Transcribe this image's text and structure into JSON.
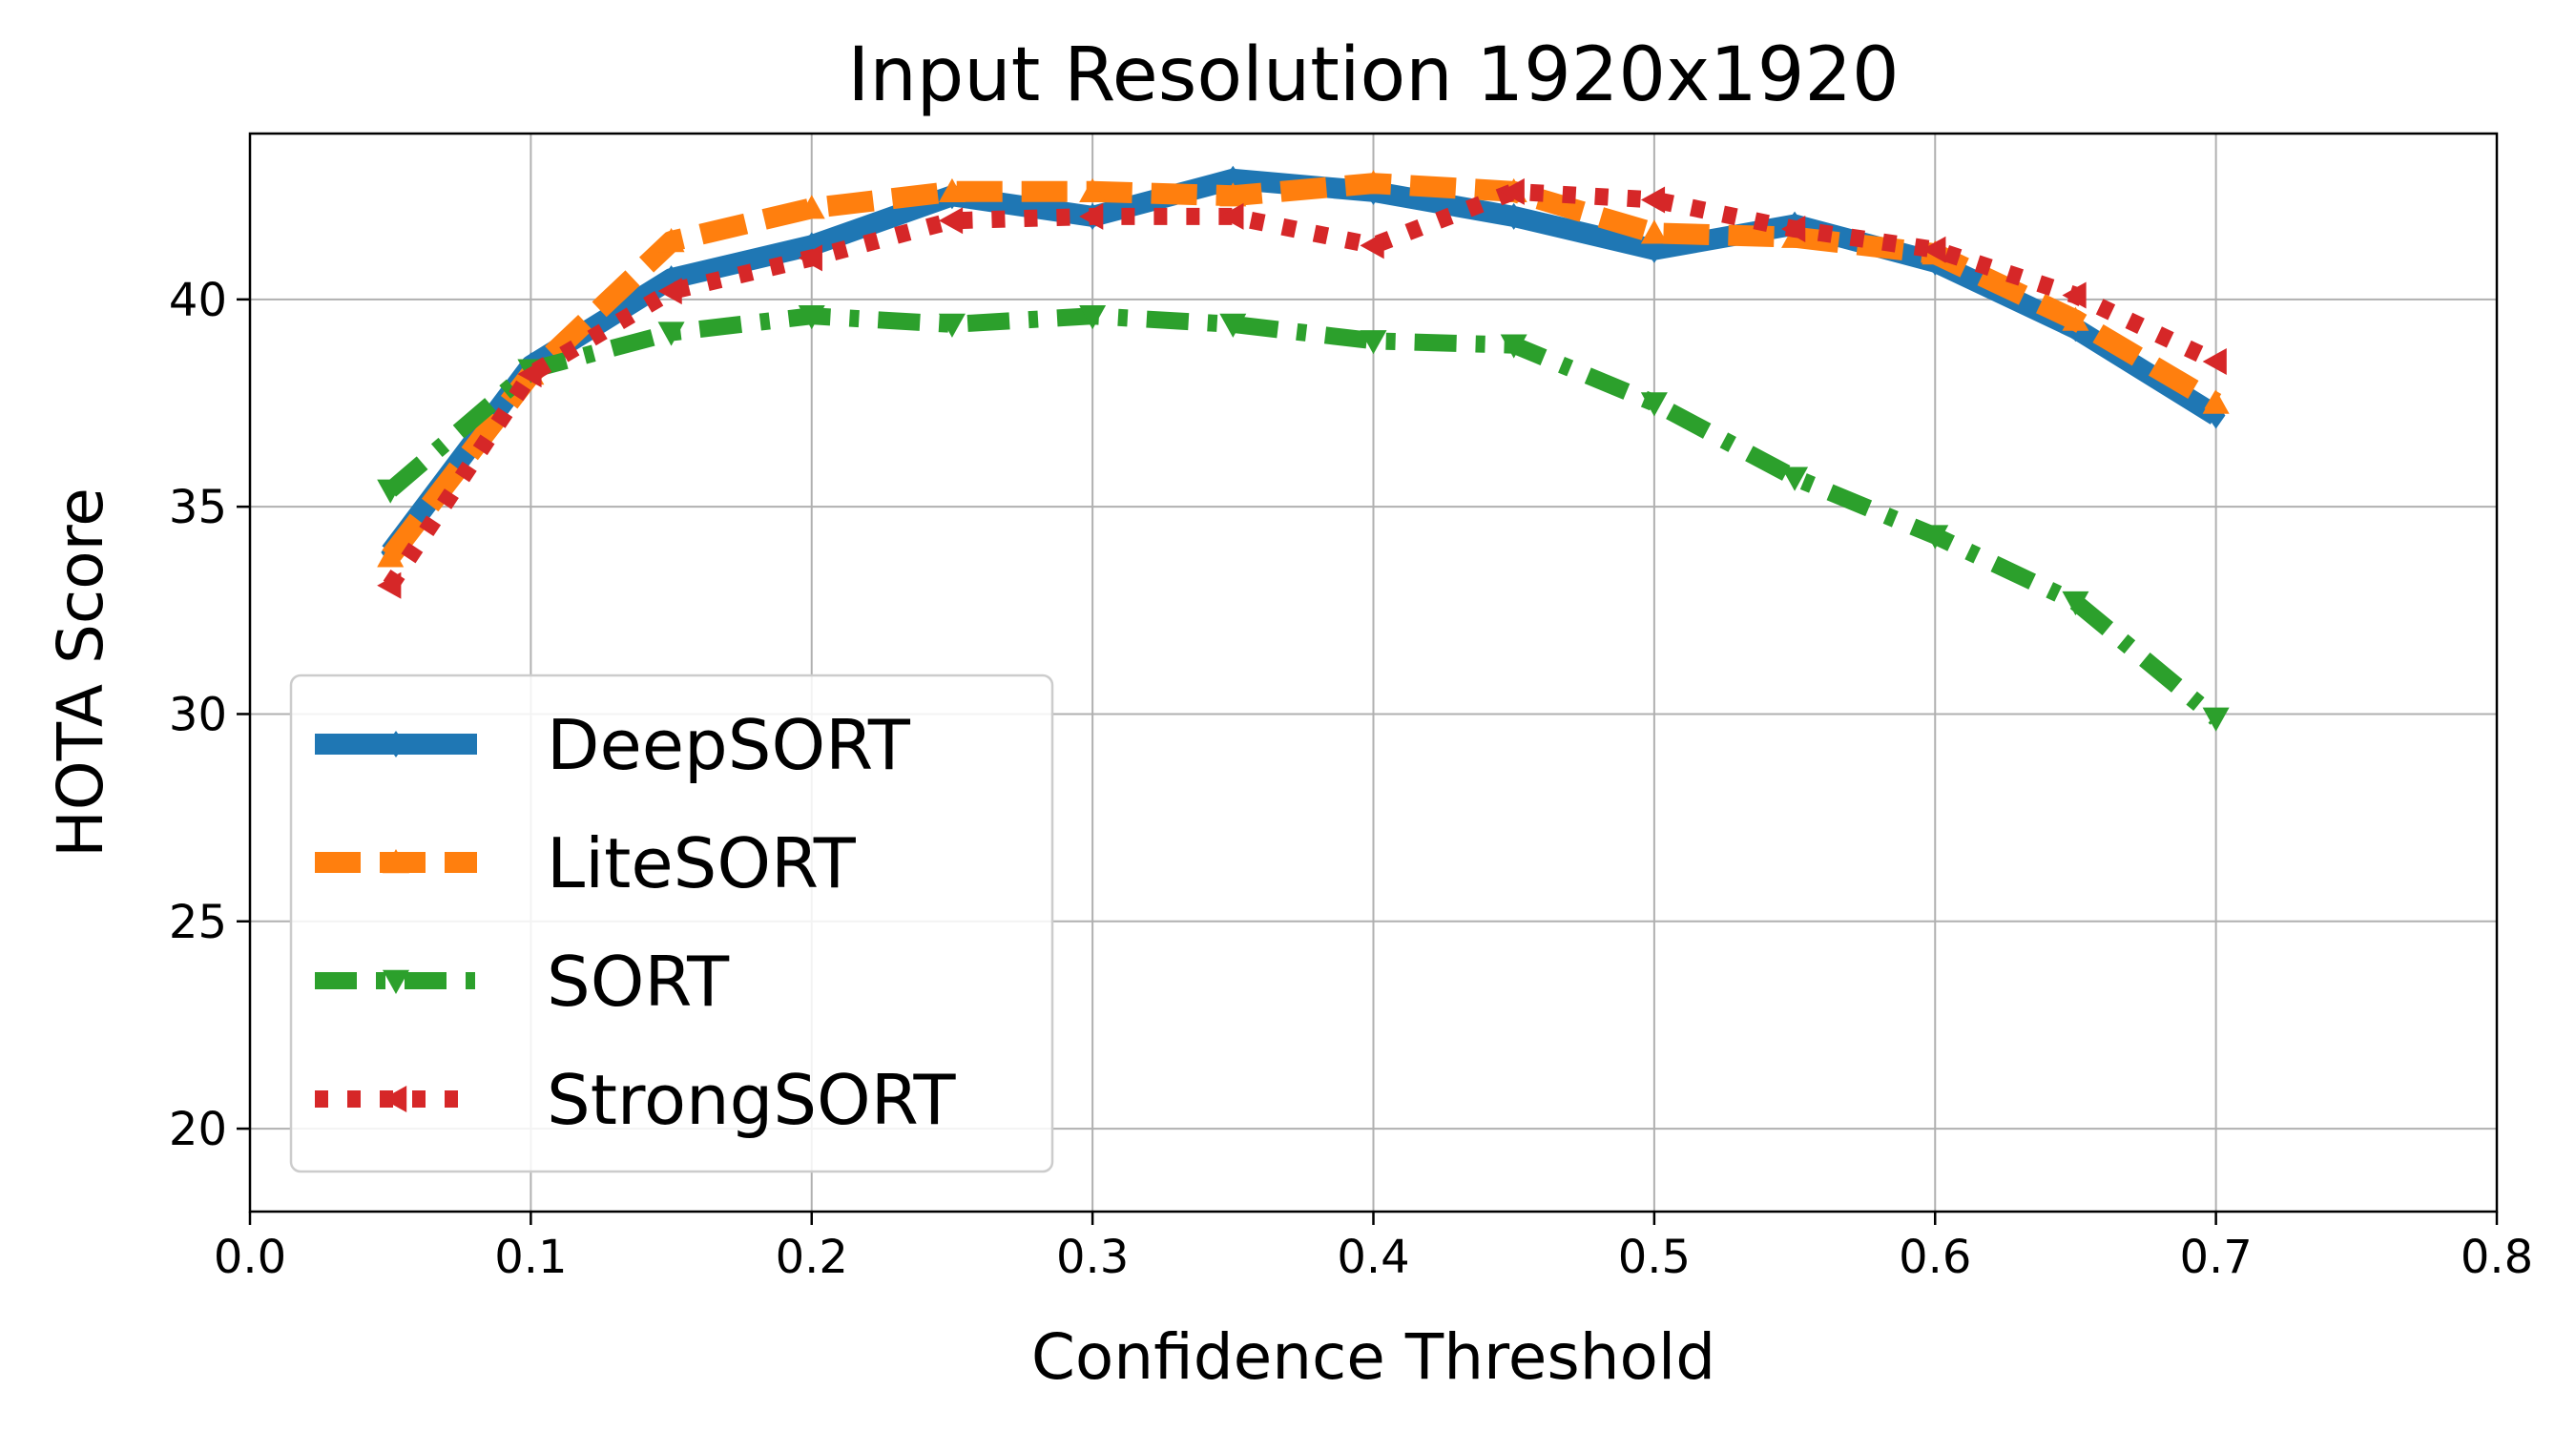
{
  "chart_data": {
    "type": "line",
    "title": "Input Resolution 1920x1920",
    "xlabel": "Confidence Threshold",
    "ylabel": "HOTA Score",
    "xlim": [
      0.0,
      0.8
    ],
    "ylim": [
      18,
      44
    ],
    "xticks": [
      "0.0",
      "0.1",
      "0.2",
      "0.3",
      "0.4",
      "0.5",
      "0.6",
      "0.7",
      "0.8"
    ],
    "yticks": [
      "20",
      "25",
      "30",
      "35",
      "40"
    ],
    "grid": true,
    "legend_position": "lower-left",
    "series": [
      {
        "name": "DeepSORT",
        "color": "#1f77b4",
        "line_style": "solid",
        "marker": "diamond",
        "x": [
          0.05,
          0.1,
          0.15,
          0.2,
          0.25,
          0.3,
          0.35,
          0.4,
          0.45,
          0.5,
          0.55,
          0.6,
          0.65,
          0.7
        ],
        "y": [
          33.9,
          38.4,
          40.5,
          41.3,
          42.5,
          42.0,
          42.9,
          42.6,
          42.0,
          41.2,
          41.8,
          40.9,
          39.3,
          37.2
        ]
      },
      {
        "name": "LiteSORT",
        "color": "#ff7f0e",
        "line_style": "dashed",
        "marker": "triangle-up",
        "x": [
          0.05,
          0.1,
          0.15,
          0.2,
          0.25,
          0.3,
          0.35,
          0.4,
          0.45,
          0.5,
          0.55,
          0.6,
          0.65,
          0.7
        ],
        "y": [
          33.8,
          38.2,
          41.4,
          42.2,
          42.6,
          42.6,
          42.5,
          42.8,
          42.6,
          41.6,
          41.5,
          41.1,
          39.5,
          37.5
        ]
      },
      {
        "name": "SORT",
        "color": "#2ca02c",
        "line_style": "dashdot",
        "marker": "triangle-down",
        "x": [
          0.05,
          0.1,
          0.15,
          0.2,
          0.25,
          0.3,
          0.35,
          0.4,
          0.45,
          0.5,
          0.55,
          0.6,
          0.65,
          0.7
        ],
        "y": [
          35.4,
          38.3,
          39.2,
          39.6,
          39.4,
          39.6,
          39.4,
          39.0,
          38.9,
          37.5,
          35.7,
          34.3,
          32.7,
          29.9
        ]
      },
      {
        "name": "StrongSORT",
        "color": "#d62728",
        "line_style": "dotted",
        "marker": "triangle-left",
        "x": [
          0.05,
          0.1,
          0.15,
          0.2,
          0.25,
          0.3,
          0.35,
          0.4,
          0.45,
          0.5,
          0.55,
          0.6,
          0.65,
          0.7
        ],
        "y": [
          33.1,
          38.2,
          40.2,
          41.0,
          41.9,
          42.0,
          42.0,
          41.3,
          42.6,
          42.4,
          41.7,
          41.2,
          40.1,
          38.5
        ]
      }
    ]
  }
}
